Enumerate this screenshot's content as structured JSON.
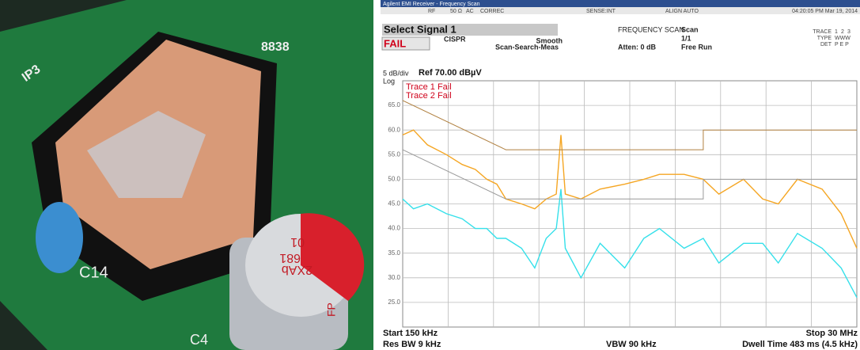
{
  "photo": {
    "labels": [
      "8838",
      "IP3",
      "C14",
      "2XAb",
      "681",
      "01",
      "FP",
      "C4"
    ]
  },
  "header": {
    "title": "Agilent EMI Receiver - Frequency Scan",
    "status": [
      "RF",
      "50 Ω",
      "AC",
      "CORREC",
      "SENSE:INT",
      "ALIGN AUTO"
    ],
    "timestamp": "04:20:05 PM Mar 19, 2014"
  },
  "panel": {
    "select": "Select Signal 1",
    "result": "FAIL",
    "standard": "CISPR",
    "smooth": "Smooth",
    "mode": "Scan-Search-Meas",
    "scan_title": "FREQUENCY SCAN",
    "atten": "Atten: 0 dB",
    "scan": "Scan",
    "count": "1/1",
    "run": "Free Run",
    "trace_label": "TRACE",
    "trace_nums": [
      "1",
      "2",
      "3"
    ],
    "type_label": "TYPE",
    "type_value": "WWW",
    "det_label": "DET",
    "det_value": "P E P"
  },
  "chart_data": {
    "type": "line",
    "scale_label": "5 dB/div",
    "ref_label": "Ref 70.00 dBµV",
    "log_label": "Log",
    "annotations": [
      "Trace 1 Fail",
      "Trace 2 Fail"
    ],
    "x": [
      0.15,
      0.17,
      0.2,
      0.25,
      0.3,
      0.35,
      0.4,
      0.45,
      0.5,
      0.6,
      0.7,
      0.8,
      0.9,
      0.95,
      1.0,
      1.2,
      1.5,
      2,
      2.5,
      3,
      4,
      5,
      6,
      8,
      10,
      12,
      15,
      20,
      25,
      30
    ],
    "xlim": [
      0.15,
      30
    ],
    "xlog": true,
    "ylim": [
      20,
      70
    ],
    "yticks": [
      {
        "value": 65,
        "label": "65.0"
      },
      {
        "value": 60,
        "label": "60.0"
      },
      {
        "value": 55,
        "label": "55.0"
      },
      {
        "value": 50,
        "label": "50.0"
      },
      {
        "value": 45,
        "label": "45.0"
      },
      {
        "value": 40,
        "label": "40.0"
      },
      {
        "value": 35,
        "label": "35.0"
      },
      {
        "value": 30,
        "label": "30.0"
      },
      {
        "value": 25,
        "label": "25.0"
      }
    ],
    "grid": true,
    "series": [
      {
        "color": "#f5a623",
        "values": [
          59,
          60,
          57,
          55,
          53,
          52,
          50,
          49,
          46,
          45,
          44,
          46,
          47,
          59,
          47,
          46,
          48,
          49,
          50,
          51,
          51,
          50,
          47,
          50,
          46,
          45,
          50,
          48,
          43,
          36
        ]
      },
      {
        "color": "#35e0ea",
        "values": [
          46,
          44,
          45,
          43,
          42,
          40,
          40,
          38,
          38,
          36,
          32,
          38,
          40,
          48,
          36,
          30,
          37,
          32,
          38,
          40,
          36,
          38,
          33,
          37,
          37,
          33,
          39,
          36,
          32,
          26
        ]
      },
      {
        "color": "#b08040",
        "x": [
          0.15,
          0.5,
          5,
          5,
          30
        ],
        "values": [
          66,
          56,
          56,
          60,
          60
        ]
      },
      {
        "color": "#999999",
        "x": [
          0.15,
          0.5,
          5,
          5,
          30
        ],
        "values": [
          56,
          46,
          46,
          50,
          50
        ]
      }
    ],
    "footer": {
      "start": "Start 150 kHz",
      "stop": "Stop 30 MHz",
      "rbw": "Res BW 9 kHz",
      "vbw": "VBW 90 kHz",
      "dwell": "Dwell Time 483 ms (4.5 kHz)"
    }
  }
}
